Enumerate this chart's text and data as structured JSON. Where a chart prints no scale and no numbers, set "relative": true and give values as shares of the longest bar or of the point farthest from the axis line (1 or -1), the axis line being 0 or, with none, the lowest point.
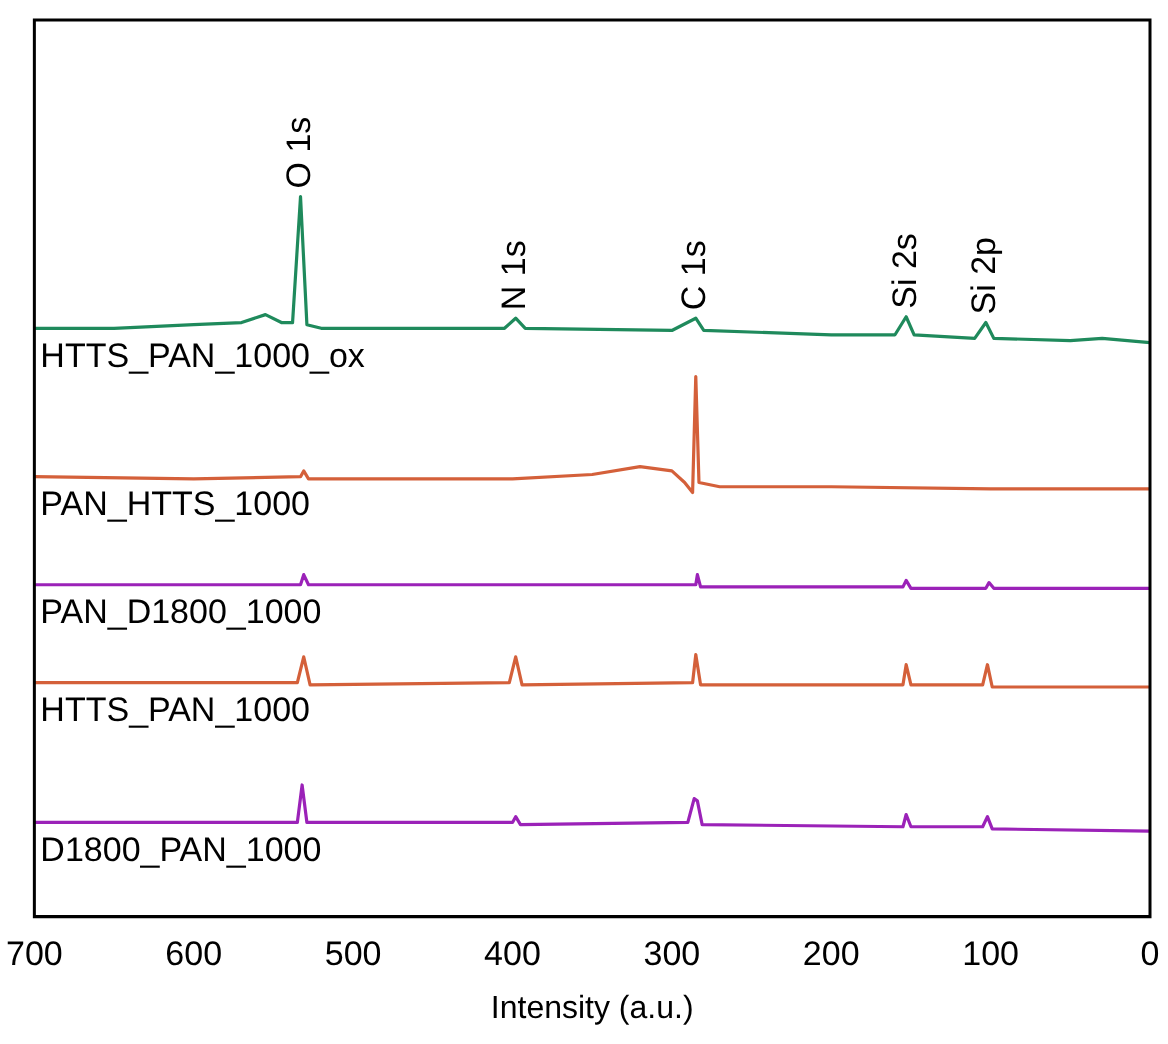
{
  "chart_data": {
    "type": "line",
    "xlabel": "Intensity (a.u.)",
    "relative": true,
    "xlim": [
      700,
      0
    ],
    "xticks": [
      700,
      600,
      500,
      400,
      300,
      200,
      100,
      0
    ],
    "grid": false,
    "legend": false,
    "marker": "none",
    "series": [
      {
        "name": "HTTS_PAN_1000_ox",
        "color": "#1f8a5c",
        "x": [
          700,
          650,
          600,
          570,
          555,
          545,
          538,
          533,
          529,
          520,
          450,
          405,
          398,
          392,
          300,
          285,
          280,
          200,
          160,
          153,
          148,
          110,
          103,
          98,
          50,
          30,
          0
        ],
        "values": [
          0.817,
          0.817,
          0.822,
          0.825,
          0.836,
          0.825,
          0.825,
          1.0,
          0.822,
          0.817,
          0.817,
          0.817,
          0.831,
          0.817,
          0.814,
          0.831,
          0.814,
          0.808,
          0.808,
          0.833,
          0.808,
          0.803,
          0.825,
          0.803,
          0.8,
          0.803,
          0.797
        ]
      },
      {
        "name": "PAN_HTTS_1000",
        "color": "#d4603a",
        "x": [
          700,
          600,
          533,
          531,
          528,
          450,
          400,
          350,
          320,
          300,
          292,
          287,
          285,
          283,
          270,
          200,
          100,
          0
        ],
        "values": [
          0.611,
          0.608,
          0.611,
          0.619,
          0.608,
          0.608,
          0.608,
          0.614,
          0.625,
          0.619,
          0.603,
          0.589,
          0.75,
          0.603,
          0.597,
          0.597,
          0.594,
          0.594
        ]
      },
      {
        "name": "PAN_D1800_1000",
        "color": "#9b22b8",
        "x": [
          700,
          533,
          531,
          528,
          400,
          285,
          284,
          282,
          155,
          153,
          150,
          103,
          101,
          98,
          0
        ],
        "values": [
          0.461,
          0.461,
          0.475,
          0.461,
          0.461,
          0.461,
          0.475,
          0.458,
          0.458,
          0.467,
          0.456,
          0.456,
          0.464,
          0.456,
          0.456
        ]
      },
      {
        "name": "HTTS_PAN_1000",
        "color": "#d4603a",
        "x": [
          700,
          535,
          531,
          527,
          402,
          398,
          394,
          287,
          285,
          282,
          155,
          153,
          150,
          105,
          102,
          99,
          0
        ],
        "values": [
          0.325,
          0.325,
          0.361,
          0.322,
          0.325,
          0.361,
          0.322,
          0.325,
          0.364,
          0.322,
          0.322,
          0.35,
          0.322,
          0.322,
          0.35,
          0.319,
          0.319
        ]
      },
      {
        "name": "D1800_PAN_1000",
        "color": "#9b22b8",
        "x": [
          700,
          600,
          535,
          532,
          529,
          400,
          398,
          395,
          290,
          286,
          284,
          281,
          155,
          153,
          150,
          105,
          102,
          99,
          0
        ],
        "values": [
          0.131,
          0.131,
          0.131,
          0.183,
          0.131,
          0.131,
          0.139,
          0.128,
          0.131,
          0.164,
          0.161,
          0.128,
          0.125,
          0.142,
          0.125,
          0.125,
          0.139,
          0.122,
          0.119
        ]
      }
    ],
    "annotations": [
      {
        "text": "O 1s",
        "x": 533,
        "y": 1.0
      },
      {
        "text": "N 1s",
        "x": 398,
        "y": 0.831
      },
      {
        "text": "C 1s",
        "x": 285,
        "y": 0.831
      },
      {
        "text": "Si 2s",
        "x": 153,
        "y": 0.833
      },
      {
        "text": "Si 2p",
        "x": 103,
        "y": 0.825
      }
    ]
  }
}
